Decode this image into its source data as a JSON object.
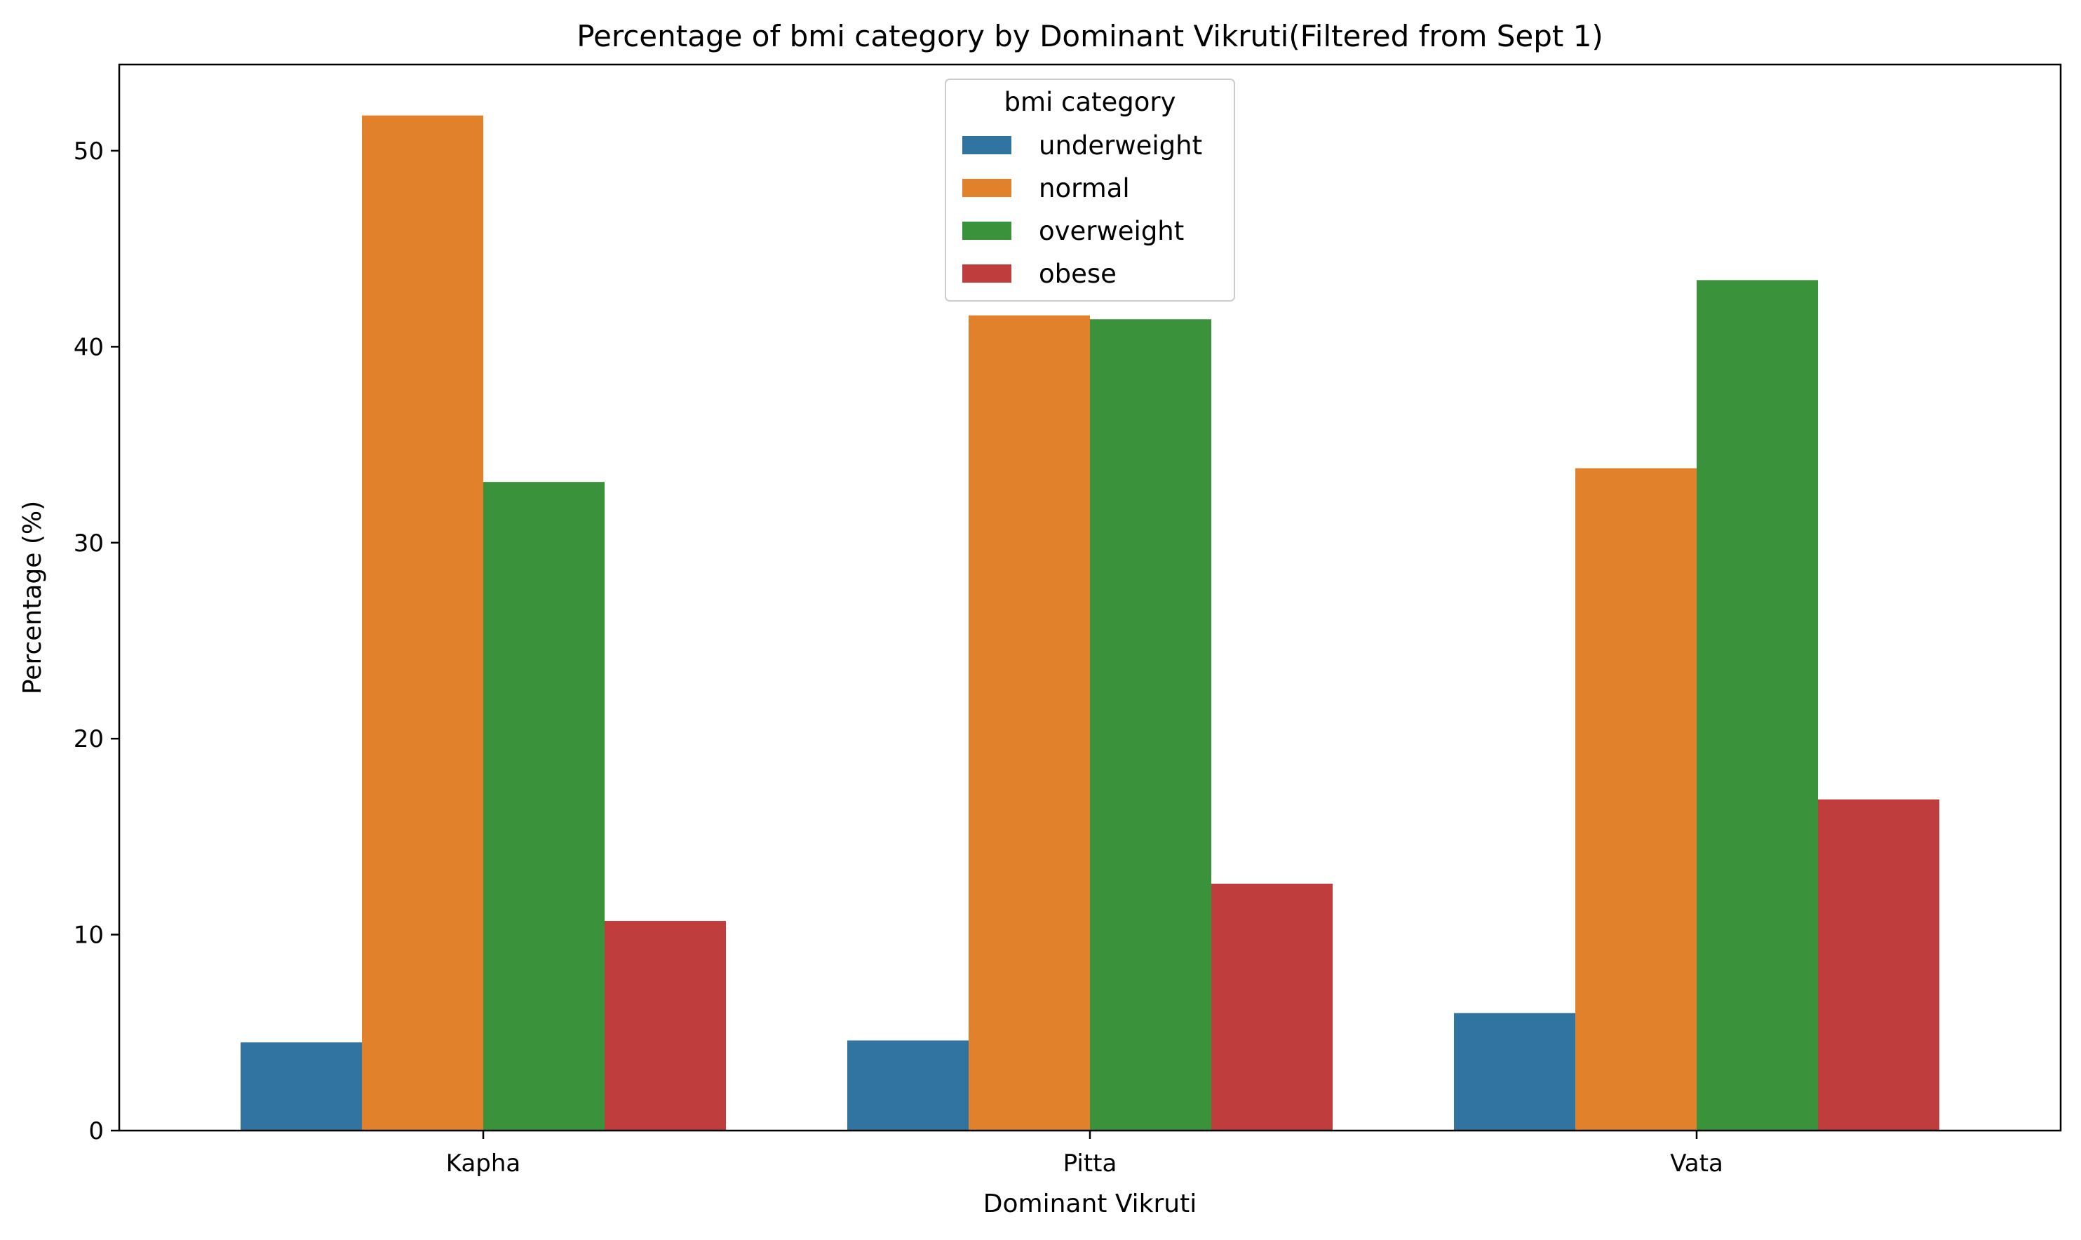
{
  "chart_data": {
    "type": "bar",
    "title": "Percentage of bmi category by Dominant Vikruti(Filtered from Sept 1)",
    "xlabel": "Dominant Vikruti",
    "ylabel": "Percentage (%)",
    "categories": [
      "Kapha",
      "Pitta",
      "Vata"
    ],
    "ylim": [
      0,
      54.4
    ],
    "yticks": [
      0,
      10,
      20,
      30,
      40,
      50
    ],
    "legend": {
      "title": "bmi category",
      "placement": "upper center"
    },
    "series": [
      {
        "name": "underweight",
        "color": "#3274a1",
        "values": [
          4.5,
          4.6,
          6.0
        ]
      },
      {
        "name": "normal",
        "color": "#e1812c",
        "values": [
          51.8,
          41.6,
          33.8
        ]
      },
      {
        "name": "overweight",
        "color": "#3a923a",
        "values": [
          33.1,
          41.4,
          43.4
        ]
      },
      {
        "name": "obese",
        "color": "#c03d3e",
        "values": [
          10.7,
          12.6,
          16.9
        ]
      }
    ]
  }
}
